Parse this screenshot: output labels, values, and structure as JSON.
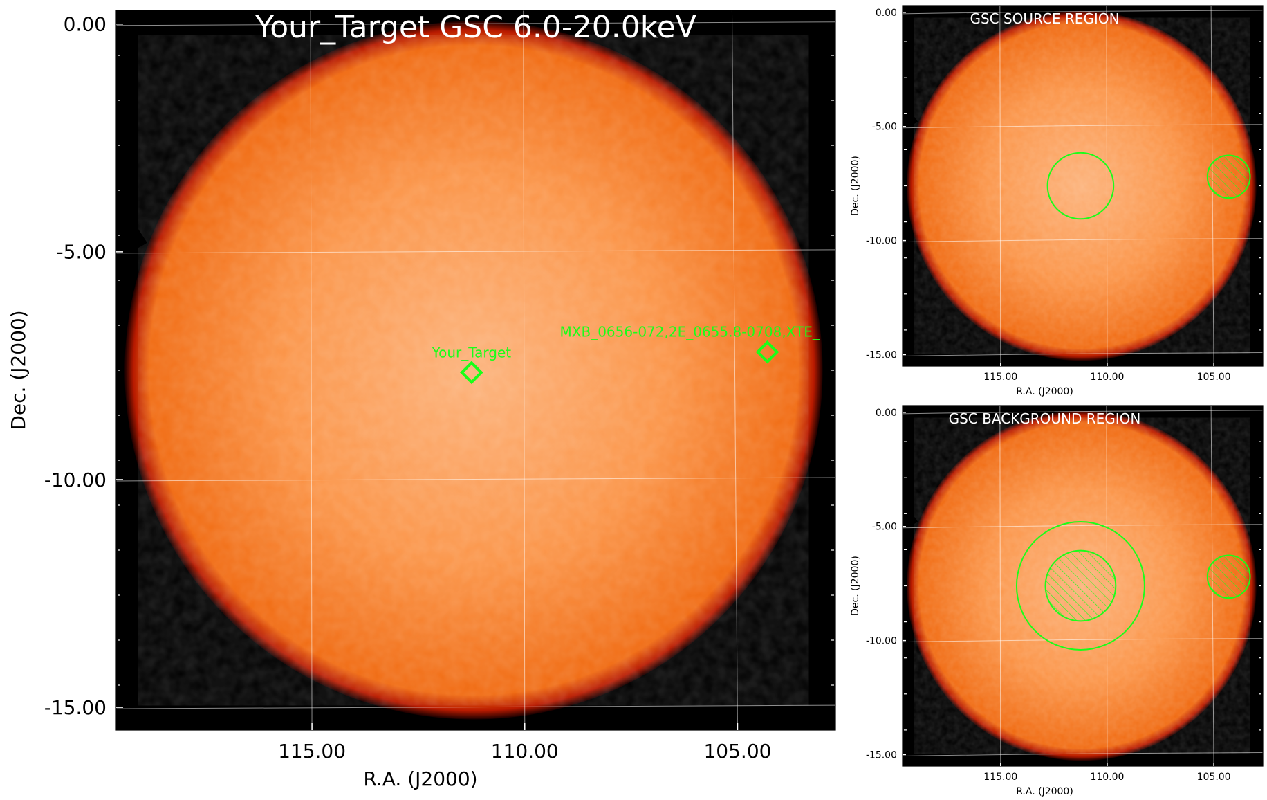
{
  "colors": {
    "background": "#000000",
    "disk_inner": "#fcb27a",
    "disk_mid": "#fb9447",
    "disk_edge": "#f0690f",
    "disk_rim": "#b81a00",
    "grid": "#ffffff",
    "region": "#19ff19",
    "title_text": "#ffffff"
  },
  "chart_data": [
    {
      "type": "heatmap",
      "title": "Your_Target GSC 6.0-20.0keV",
      "xlabel": "R.A. (J2000)",
      "ylabel": "Dec. (J2000)",
      "xlim": [
        119.6,
        102.7
      ],
      "ylim": [
        -15.5,
        0.3
      ],
      "x_ticks": [
        115.0,
        110.0,
        105.0
      ],
      "x_tick_labels": [
        "115.00",
        "110.00",
        "105.00"
      ],
      "y_ticks": [
        0.0,
        -5.0,
        -10.0,
        -15.0
      ],
      "y_tick_labels": [
        "0.00",
        "-5.00",
        "-10.00",
        "-15.00"
      ],
      "grid": true,
      "field_of_view": {
        "center": [
          111.2,
          -7.6
        ],
        "radius_deg": 8.2
      },
      "markers": [
        {
          "name": "Your_Target",
          "ra": 111.25,
          "dec": -7.65,
          "shape": "diamond"
        },
        {
          "name": "MXB_0656-072,2E_0655.8-0708,XTE_",
          "ra": 104.3,
          "dec": -7.2,
          "shape": "diamond"
        }
      ]
    },
    {
      "type": "heatmap",
      "title": "GSC SOURCE REGION",
      "xlabel": "R.A. (J2000)",
      "ylabel": "Dec. (J2000)",
      "xlim": [
        119.6,
        102.7
      ],
      "ylim": [
        -15.5,
        0.3
      ],
      "x_ticks": [
        115.0,
        110.0,
        105.0
      ],
      "x_tick_labels": [
        "115.00",
        "110.00",
        "105.00"
      ],
      "y_ticks": [
        0.0,
        -5.0,
        -10.0,
        -15.0
      ],
      "y_tick_labels": [
        "0.00",
        "-5.00",
        "-10.00",
        "-15.00"
      ],
      "grid": true,
      "field_of_view": {
        "center": [
          111.2,
          -7.6
        ],
        "radius_deg": 8.2
      },
      "regions": [
        {
          "kind": "source_circle",
          "ra": 111.25,
          "dec": -7.6,
          "radius_deg": 1.55,
          "hatched": false
        },
        {
          "kind": "excluded_circle",
          "ra": 104.3,
          "dec": -7.2,
          "radius_deg": 1.0,
          "hatched": true
        }
      ]
    },
    {
      "type": "heatmap",
      "title": "GSC BACKGROUND REGION",
      "xlabel": "R.A. (J2000)",
      "ylabel": "Dec. (J2000)",
      "xlim": [
        119.6,
        102.7
      ],
      "ylim": [
        -15.5,
        0.3
      ],
      "x_ticks": [
        115.0,
        110.0,
        105.0
      ],
      "x_tick_labels": [
        "115.00",
        "110.00",
        "105.00"
      ],
      "y_ticks": [
        0.0,
        -5.0,
        -10.0,
        -15.0
      ],
      "y_tick_labels": [
        "0.00",
        "-5.00",
        "-10.00",
        "-15.00"
      ],
      "grid": true,
      "field_of_view": {
        "center": [
          111.2,
          -7.6
        ],
        "radius_deg": 8.2
      },
      "regions": [
        {
          "kind": "background_annulus_outer",
          "ra": 111.25,
          "dec": -7.6,
          "radius_deg": 3.0,
          "hatched": false
        },
        {
          "kind": "excluded_source_circle",
          "ra": 111.25,
          "dec": -7.6,
          "radius_deg": 1.65,
          "hatched": true
        },
        {
          "kind": "excluded_circle",
          "ra": 104.3,
          "dec": -7.2,
          "radius_deg": 1.0,
          "hatched": true
        }
      ]
    }
  ]
}
